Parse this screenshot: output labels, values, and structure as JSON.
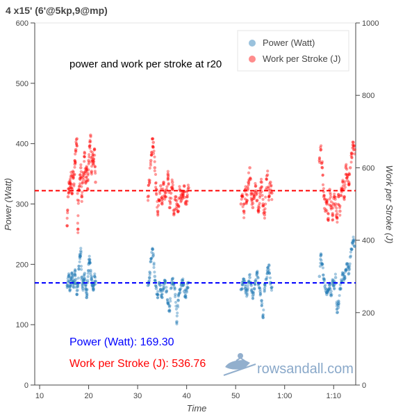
{
  "chart_data": {
    "type": "scatter",
    "title": "4 x15' (6'@5kp,9@mp)",
    "annotation": "power and work per stroke at r20",
    "xlabel": "Time",
    "ylabel_left": "Power (Watt)",
    "ylabel_right": "Work per Stroke (J)",
    "xlim": [
      9,
      74.5
    ],
    "ylim_left": [
      0,
      600
    ],
    "ylim_right": [
      0,
      1000
    ],
    "x_ticks": [
      {
        "value": 10,
        "label": "10"
      },
      {
        "value": 20,
        "label": "20"
      },
      {
        "value": 30,
        "label": "30"
      },
      {
        "value": 40,
        "label": "40"
      },
      {
        "value": 50,
        "label": "50"
      },
      {
        "value": 60,
        "label": "1:00"
      },
      {
        "value": 70,
        "label": "1:10"
      }
    ],
    "y_left_ticks": [
      0,
      100,
      200,
      300,
      400,
      500,
      600
    ],
    "y_right_ticks": [
      0,
      200,
      400,
      600,
      800,
      1000
    ],
    "grid": false,
    "legend_position": "top-right",
    "series": [
      {
        "name": "Power (Watt)",
        "axis": "left",
        "color": "#1f77b4",
        "mean": 169.3,
        "intervals": [
          {
            "x_start": 15.5,
            "x_end": 21.5,
            "points": [
              [
                15.6,
                165
              ],
              [
                15.8,
                172
              ],
              [
                16.0,
                181
              ],
              [
                16.2,
                158
              ],
              [
                16.4,
                176
              ],
              [
                16.6,
                184
              ],
              [
                16.8,
                170
              ],
              [
                17.0,
                162
              ],
              [
                17.2,
                188
              ],
              [
                17.4,
                175
              ],
              [
                17.6,
                150
              ],
              [
                17.8,
                168
              ],
              [
                18.0,
                192
              ],
              [
                18.2,
                212
              ],
              [
                18.4,
                222
              ],
              [
                18.6,
                178
              ],
              [
                18.8,
                160
              ],
              [
                19.0,
                174
              ],
              [
                19.2,
                185
              ],
              [
                19.4,
                166
              ],
              [
                19.6,
                145
              ],
              [
                19.8,
                170
              ],
              [
                20.0,
                200
              ],
              [
                20.2,
                208
              ],
              [
                20.4,
                190
              ],
              [
                20.6,
                176
              ],
              [
                20.8,
                165
              ],
              [
                21.0,
                158
              ],
              [
                21.2,
                180
              ],
              [
                21.4,
                172
              ]
            ]
          },
          {
            "x_start": 32.0,
            "x_end": 40.5,
            "points": [
              [
                32.1,
                165
              ],
              [
                32.4,
                178
              ],
              [
                32.7,
                205
              ],
              [
                33.0,
                225
              ],
              [
                33.2,
                215
              ],
              [
                33.5,
                180
              ],
              [
                33.8,
                160
              ],
              [
                34.1,
                150
              ],
              [
                34.4,
                170
              ],
              [
                34.7,
                158
              ],
              [
                35.0,
                145
              ],
              [
                35.3,
                165
              ],
              [
                35.6,
                172
              ],
              [
                35.9,
                155
              ],
              [
                36.2,
                135
              ],
              [
                36.5,
                122
              ],
              [
                36.8,
                160
              ],
              [
                37.1,
                176
              ],
              [
                37.4,
                168
              ],
              [
                37.7,
                150
              ],
              [
                38.0,
                105
              ],
              [
                38.3,
                140
              ],
              [
                38.6,
                158
              ],
              [
                38.9,
                165
              ],
              [
                39.2,
                172
              ],
              [
                39.5,
                155
              ],
              [
                39.8,
                148
              ],
              [
                40.1,
                162
              ],
              [
                40.4,
                170
              ]
            ]
          },
          {
            "x_start": 51.0,
            "x_end": 57.5,
            "points": [
              [
                51.1,
                158
              ],
              [
                51.4,
                166
              ],
              [
                51.7,
                175
              ],
              [
                52.0,
                160
              ],
              [
                52.3,
                152
              ],
              [
                52.6,
                170
              ],
              [
                52.9,
                178
              ],
              [
                53.2,
                165
              ],
              [
                53.5,
                148
              ],
              [
                53.8,
                160
              ],
              [
                54.1,
                172
              ],
              [
                54.4,
                185
              ],
              [
                54.7,
                168
              ],
              [
                55.0,
                155
              ],
              [
                55.3,
                140
              ],
              [
                55.6,
                112
              ],
              [
                55.9,
                160
              ],
              [
                56.2,
                175
              ],
              [
                56.5,
                190
              ],
              [
                56.8,
                198
              ],
              [
                57.1,
                170
              ],
              [
                57.4,
                162
              ]
            ]
          },
          {
            "x_start": 67.0,
            "x_end": 74.5,
            "points": [
              [
                67.1,
                180
              ],
              [
                67.4,
                215
              ],
              [
                67.7,
                200
              ],
              [
                68.0,
                175
              ],
              [
                68.3,
                160
              ],
              [
                68.6,
                150
              ],
              [
                68.9,
                158
              ],
              [
                69.2,
                165
              ],
              [
                69.5,
                148
              ],
              [
                69.8,
                172
              ],
              [
                70.1,
                165
              ],
              [
                70.4,
                178
              ],
              [
                70.7,
                120
              ],
              [
                71.0,
                135
              ],
              [
                71.3,
                160
              ],
              [
                71.6,
                170
              ],
              [
                71.9,
                185
              ],
              [
                72.2,
                176
              ],
              [
                72.5,
                190
              ],
              [
                72.8,
                200
              ],
              [
                73.1,
                185
              ],
              [
                73.4,
                212
              ],
              [
                73.7,
                225
              ],
              [
                74.0,
                240
              ],
              [
                74.3,
                230
              ]
            ]
          }
        ]
      },
      {
        "name": "Work per Stroke (J)",
        "axis": "right",
        "color": "#ff0000",
        "mean": 536.76,
        "intervals": [
          {
            "x_start": 15.5,
            "x_end": 21.5,
            "points": [
              [
                15.6,
                440
              ],
              [
                15.8,
                520
              ],
              [
                16.0,
                560
              ],
              [
                16.2,
                545
              ],
              [
                16.4,
                575
              ],
              [
                16.6,
                530
              ],
              [
                16.8,
                590
              ],
              [
                17.0,
                555
              ],
              [
                17.2,
                610
              ],
              [
                17.4,
                650
              ],
              [
                17.6,
                680
              ],
              [
                17.8,
                430
              ],
              [
                18.0,
                540
              ],
              [
                18.2,
                570
              ],
              [
                18.4,
                600
              ],
              [
                18.6,
                520
              ],
              [
                18.8,
                560
              ],
              [
                19.0,
                580
              ],
              [
                19.2,
                640
              ],
              [
                19.4,
                560
              ],
              [
                19.6,
                600
              ],
              [
                19.8,
                540
              ],
              [
                20.0,
                620
              ],
              [
                20.2,
                660
              ],
              [
                20.4,
                690
              ],
              [
                20.6,
                590
              ],
              [
                20.8,
                630
              ],
              [
                21.0,
                610
              ],
              [
                21.2,
                650
              ],
              [
                21.4,
                560
              ]
            ]
          },
          {
            "x_start": 32.0,
            "x_end": 40.5,
            "points": [
              [
                32.1,
                520
              ],
              [
                32.4,
                560
              ],
              [
                32.7,
                620
              ],
              [
                33.0,
                680
              ],
              [
                33.2,
                670
              ],
              [
                33.5,
                600
              ],
              [
                33.8,
                540
              ],
              [
                34.1,
                480
              ],
              [
                34.4,
                510
              ],
              [
                34.7,
                550
              ],
              [
                35.0,
                500
              ],
              [
                35.3,
                560
              ],
              [
                35.6,
                520
              ],
              [
                35.9,
                540
              ],
              [
                36.2,
                580
              ],
              [
                36.5,
                490
              ],
              [
                36.8,
                530
              ],
              [
                37.1,
                560
              ],
              [
                37.4,
                470
              ],
              [
                37.7,
                520
              ],
              [
                38.0,
                500
              ],
              [
                38.3,
                480
              ],
              [
                38.6,
                540
              ],
              [
                38.9,
                510
              ],
              [
                39.2,
                530
              ],
              [
                39.5,
                550
              ],
              [
                39.8,
                500
              ],
              [
                40.1,
                520
              ],
              [
                40.4,
                545
              ]
            ]
          },
          {
            "x_start": 51.0,
            "x_end": 57.5,
            "points": [
              [
                51.1,
                500
              ],
              [
                51.4,
                520
              ],
              [
                51.7,
                480
              ],
              [
                52.0,
                540
              ],
              [
                52.3,
                510
              ],
              [
                52.6,
                560
              ],
              [
                52.9,
                600
              ],
              [
                53.2,
                530
              ],
              [
                53.5,
                490
              ],
              [
                53.8,
                520
              ],
              [
                54.1,
                550
              ],
              [
                54.4,
                510
              ],
              [
                54.7,
                480
              ],
              [
                55.0,
                530
              ],
              [
                55.3,
                560
              ],
              [
                55.6,
                500
              ],
              [
                55.9,
                470
              ],
              [
                56.2,
                540
              ],
              [
                56.5,
                580
              ],
              [
                56.8,
                520
              ],
              [
                57.1,
                560
              ],
              [
                57.4,
                530
              ]
            ]
          },
          {
            "x_start": 67.0,
            "x_end": 74.5,
            "points": [
              [
                67.1,
                620
              ],
              [
                67.4,
                650
              ],
              [
                67.7,
                600
              ],
              [
                68.0,
                520
              ],
              [
                68.3,
                480
              ],
              [
                68.6,
                500
              ],
              [
                68.9,
                460
              ],
              [
                69.2,
                540
              ],
              [
                69.5,
                490
              ],
              [
                69.8,
                470
              ],
              [
                70.1,
                520
              ],
              [
                70.4,
                500
              ],
              [
                70.7,
                460
              ],
              [
                71.0,
                520
              ],
              [
                71.3,
                480
              ],
              [
                71.6,
                540
              ],
              [
                71.9,
                560
              ],
              [
                72.2,
                520
              ],
              [
                72.5,
                600
              ],
              [
                72.8,
                580
              ],
              [
                73.1,
                560
              ],
              [
                73.4,
                600
              ],
              [
                73.7,
                640
              ],
              [
                74.0,
                670
              ],
              [
                74.3,
                650
              ]
            ]
          }
        ]
      }
    ],
    "stats": [
      {
        "label": "Power (Watt): 169.30",
        "color": "#0000ff"
      },
      {
        "label": "Work per Stroke (J): 536.76",
        "color": "#ff0000"
      }
    ],
    "watermark": "rowsandall.com"
  }
}
